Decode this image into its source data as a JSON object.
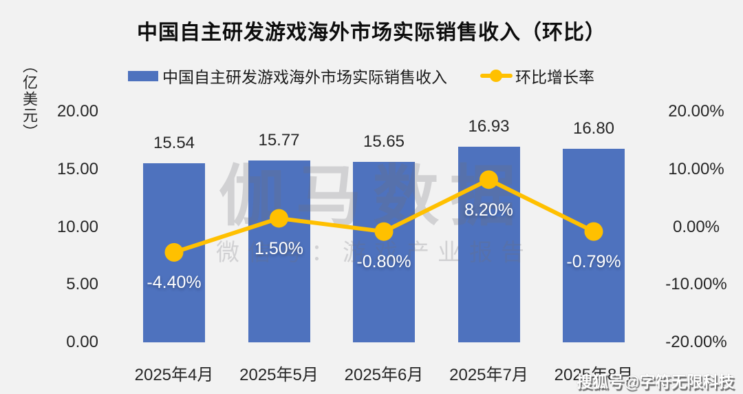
{
  "title": "中国自主研发游戏海外市场实际销售收入（环比）",
  "y_axis_unit": "（亿美元）",
  "colors": {
    "background": "#F2F2F2",
    "bar": "#4E72BE",
    "line": "#FFC000",
    "text": "#262626"
  },
  "legend": {
    "revenue_label": "中国自主研发游戏海外市场实际销售收入",
    "growth_label": "环比增长率"
  },
  "watermark": {
    "center_line1": "伽马数据",
    "center_line2": "微信号：游戏产业报告",
    "corner": "搜狐号@字符无限科技"
  },
  "chart_data": {
    "type": "bar+line",
    "title": "中国自主研发游戏海外市场实际销售收入（环比）",
    "categories": [
      "2025年4月",
      "2025年5月",
      "2025年6月",
      "2025年7月",
      "2025年8月"
    ],
    "series": [
      {
        "name": "中国自主研发游戏海外市场实际销售收入",
        "type": "bar",
        "axis": "left",
        "color": "#4E72BE",
        "values": [
          15.54,
          15.77,
          15.65,
          16.93,
          16.8
        ],
        "labels": [
          "15.54",
          "15.77",
          "15.65",
          "16.93",
          "16.80"
        ]
      },
      {
        "name": "环比增长率",
        "type": "line",
        "axis": "right",
        "color": "#FFC000",
        "values": [
          -4.4,
          1.5,
          -0.8,
          8.2,
          -0.79
        ],
        "labels": [
          "-4.40%",
          "1.50%",
          "-0.80%",
          "8.20%",
          "-0.79%"
        ]
      }
    ],
    "left_axis": {
      "unit": "亿美元",
      "min": 0,
      "max": 20,
      "ticks": [
        "20.00",
        "15.00",
        "10.00",
        "5.00",
        "0.00"
      ]
    },
    "right_axis": {
      "min": -20,
      "max": 20,
      "ticks": [
        "20.00%",
        "10.00%",
        "0.00%",
        "-10.00%",
        "-20.00%"
      ]
    },
    "grid": false,
    "legend_position": "top"
  }
}
